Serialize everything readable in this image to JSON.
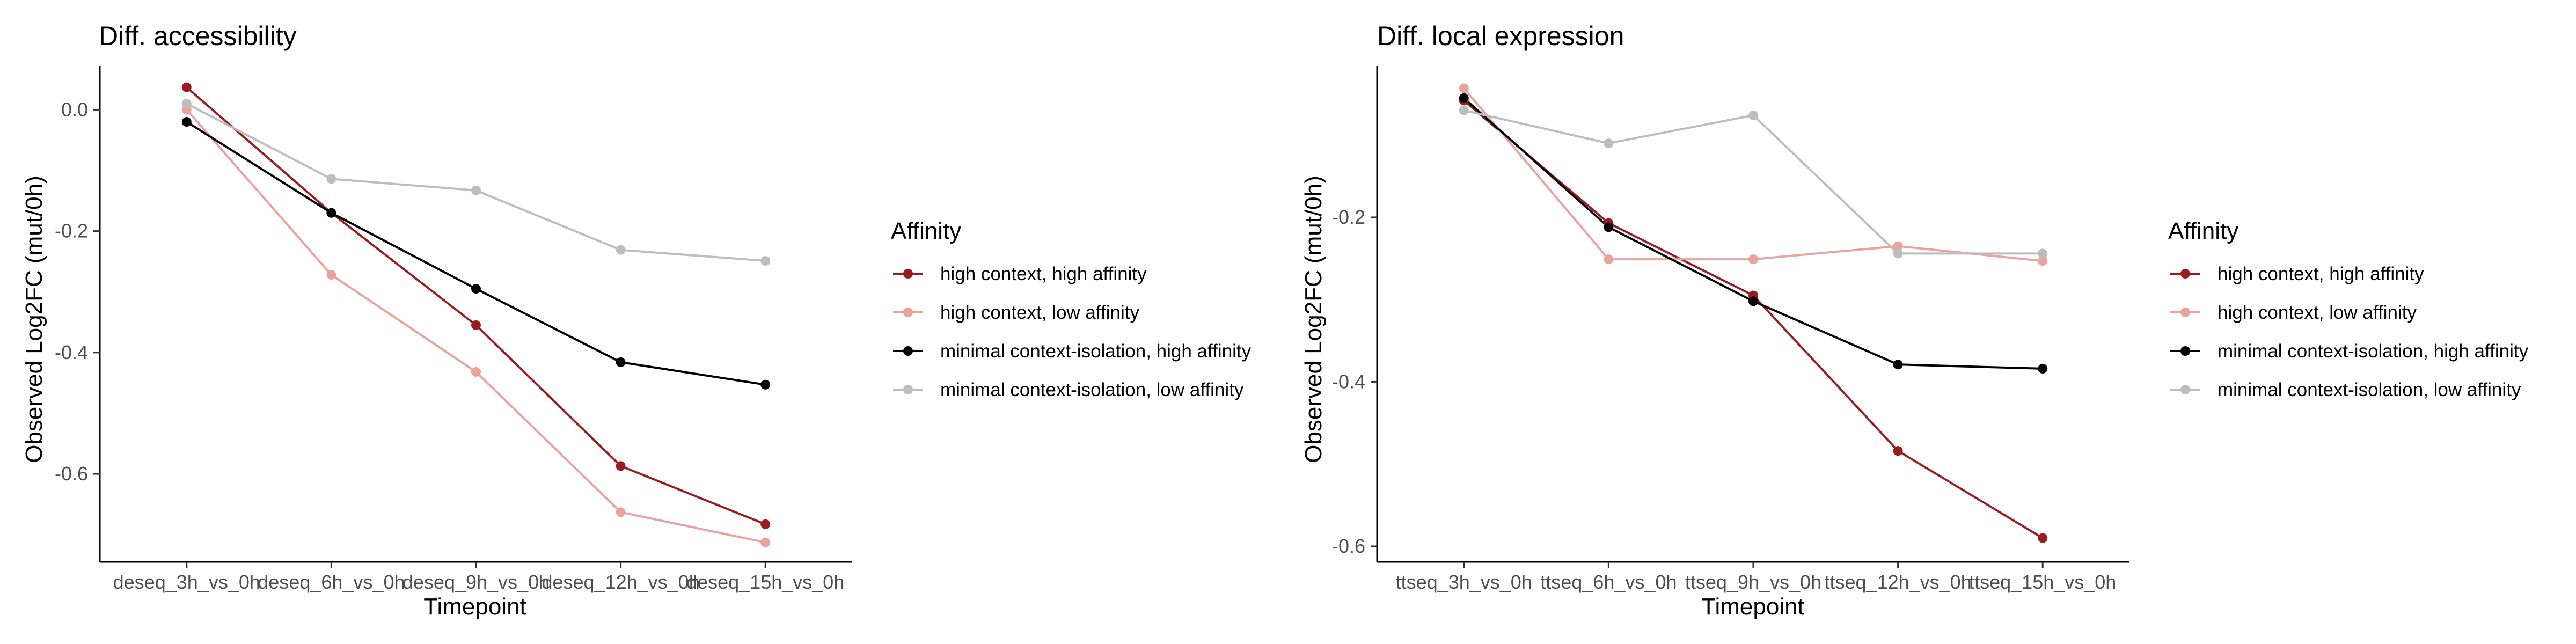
{
  "legend_title": "Affinity",
  "chart_data": [
    {
      "type": "line",
      "title": "Diff. accessibility",
      "xlabel": "Timepoint",
      "ylabel": "Observed Log2FC (mut/0h)",
      "categories": [
        "deseq_3h_vs_0h",
        "deseq_6h_vs_0h",
        "deseq_9h_vs_0h",
        "deseq_12h_vs_0h",
        "deseq_15h_vs_0h"
      ],
      "yticks": [
        0.0,
        -0.2,
        -0.4,
        -0.6
      ],
      "ytick_labels": [
        "0.0",
        "-0.2",
        "-0.4",
        "-0.6"
      ],
      "ylim": [
        -0.745,
        0.072
      ],
      "grid": false,
      "legend_placement": "right",
      "series": [
        {
          "name": "high context, high affinity",
          "color": "#9b1b1e",
          "values": [
            0.037,
            -0.17,
            -0.355,
            -0.587,
            -0.683
          ]
        },
        {
          "name": "high context, low affinity",
          "color": "#e8a49c",
          "values": [
            0.0,
            -0.272,
            -0.432,
            -0.663,
            -0.713
          ]
        },
        {
          "name": "minimal context-isolation, high affinity",
          "color": "#000000",
          "values": [
            -0.02,
            -0.17,
            -0.295,
            -0.416,
            -0.453
          ]
        },
        {
          "name": "minimal context-isolation, low affinity",
          "color": "#bdbdbd",
          "values": [
            0.01,
            -0.114,
            -0.133,
            -0.231,
            -0.249
          ]
        }
      ]
    },
    {
      "type": "line",
      "title": "Diff. local expression",
      "xlabel": "Timepoint",
      "ylabel": "Observed Log2FC (mut/0h)",
      "categories": [
        "ttseq_3h_vs_0h",
        "ttseq_6h_vs_0h",
        "ttseq_9h_vs_0h",
        "ttseq_12h_vs_0h",
        "ttseq_15h_vs_0h"
      ],
      "yticks": [
        -0.2,
        -0.4,
        -0.6
      ],
      "ytick_labels": [
        "-0.2",
        "-0.4",
        "-0.6"
      ],
      "ylim": [
        -0.619,
        -0.016
      ],
      "grid": false,
      "legend_placement": "right",
      "series": [
        {
          "name": "high context, high affinity",
          "color": "#9b1b1e",
          "values": [
            -0.058,
            -0.207,
            -0.295,
            -0.484,
            -0.59
          ]
        },
        {
          "name": "high context, low affinity",
          "color": "#e8a49c",
          "values": [
            -0.043,
            -0.251,
            -0.251,
            -0.235,
            -0.253
          ]
        },
        {
          "name": "minimal context-isolation, high affinity",
          "color": "#000000",
          "values": [
            -0.055,
            -0.212,
            -0.302,
            -0.379,
            -0.384
          ]
        },
        {
          "name": "minimal context-isolation, low affinity",
          "color": "#bdbdbd",
          "values": [
            -0.07,
            -0.11,
            -0.076,
            -0.244,
            -0.244
          ]
        }
      ]
    }
  ]
}
